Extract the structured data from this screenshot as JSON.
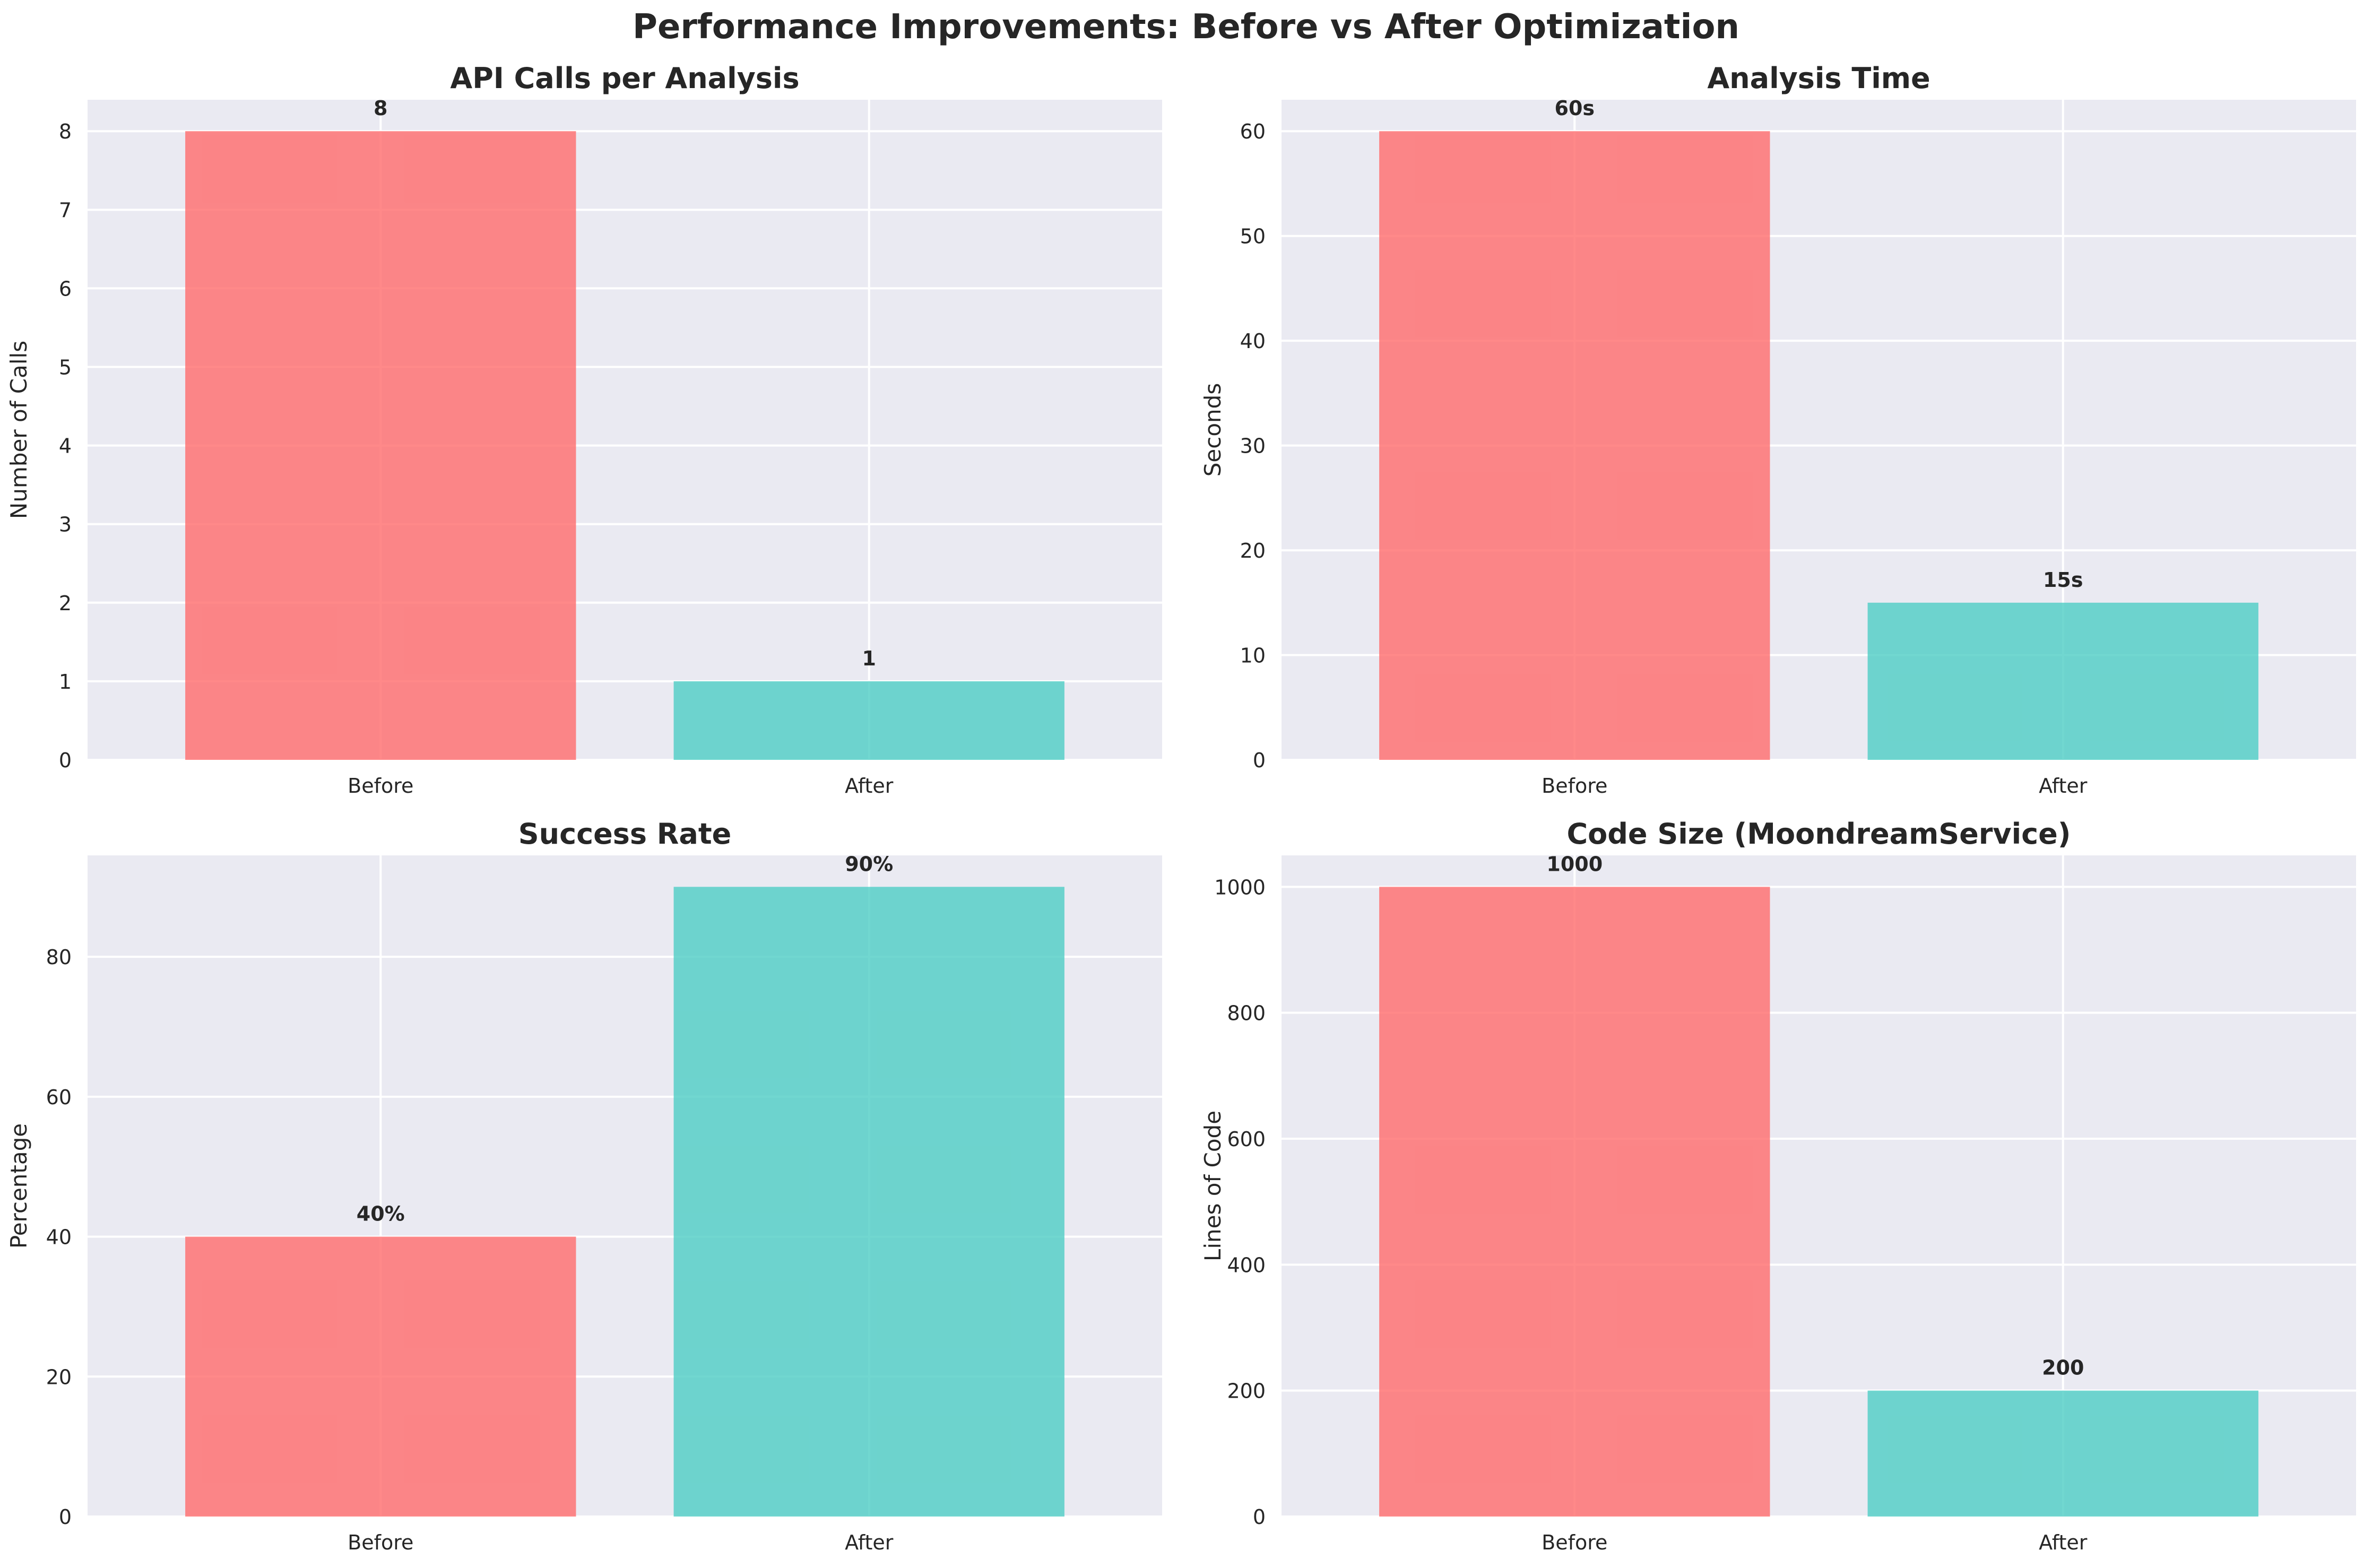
{
  "title": "Performance Improvements: Before vs After Optimization",
  "colors": {
    "before": "#FF6B6B",
    "after": "#4ECDC4",
    "panel_bg": "#EAEAF2",
    "grid": "#FFFFFF",
    "text": "#262626"
  },
  "chart_data": [
    {
      "type": "bar",
      "title": "API Calls per Analysis",
      "ylabel": "Number of Calls",
      "categories": [
        "Before",
        "After"
      ],
      "values": [
        8,
        1
      ],
      "value_labels": [
        "8",
        "1"
      ],
      "ylim": [
        0,
        8.4
      ],
      "yticks": [
        0,
        1,
        2,
        3,
        4,
        5,
        6,
        7,
        8
      ],
      "grid": true
    },
    {
      "type": "bar",
      "title": "Analysis Time",
      "ylabel": "Seconds",
      "categories": [
        "Before",
        "After"
      ],
      "values": [
        60,
        15
      ],
      "value_labels": [
        "60s",
        "15s"
      ],
      "ylim": [
        0,
        63
      ],
      "yticks": [
        0,
        10,
        20,
        30,
        40,
        50,
        60
      ],
      "grid": true
    },
    {
      "type": "bar",
      "title": "Success Rate",
      "ylabel": "Percentage",
      "categories": [
        "Before",
        "After"
      ],
      "values": [
        40,
        90
      ],
      "value_labels": [
        "40%",
        "90%"
      ],
      "ylim": [
        0,
        94.5
      ],
      "yticks": [
        0,
        20,
        40,
        60,
        80
      ],
      "grid": true
    },
    {
      "type": "bar",
      "title": "Code Size (MoondreamService)",
      "ylabel": "Lines of Code",
      "categories": [
        "Before",
        "After"
      ],
      "values": [
        1000,
        200
      ],
      "value_labels": [
        "1000",
        "200"
      ],
      "ylim": [
        0,
        1050
      ],
      "yticks": [
        0,
        200,
        400,
        600,
        800,
        1000
      ],
      "grid": true
    }
  ]
}
